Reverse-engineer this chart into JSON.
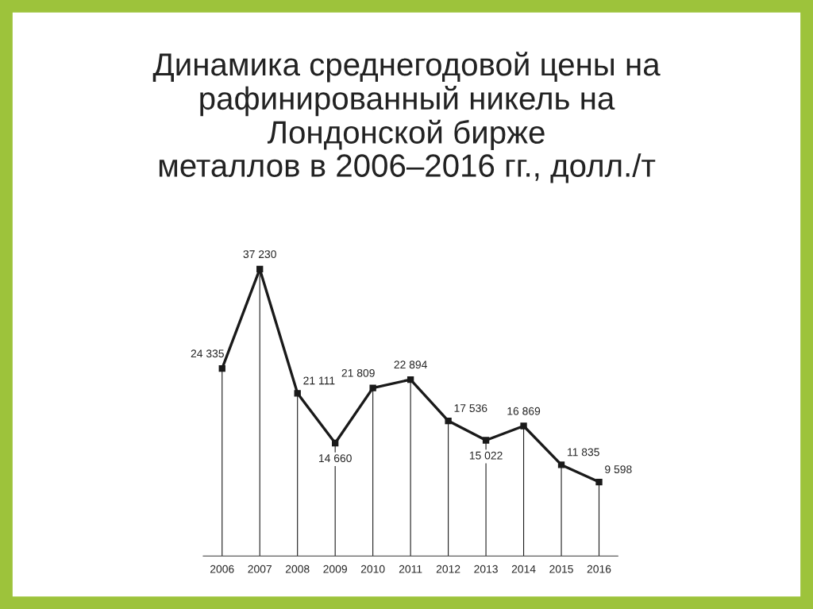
{
  "chart_data": {
    "type": "line",
    "title": "Динамика среднегодовой цены на\nрафинированный никель на\nЛондонской бирже\nметаллов в 2006–2016 гг., долл./т",
    "categories": [
      "2006",
      "2007",
      "2008",
      "2009",
      "2010",
      "2011",
      "2012",
      "2013",
      "2014",
      "2015",
      "2016"
    ],
    "series": [
      {
        "color": "#1a1a1a",
        "values": [
          24335,
          37230,
          21111,
          14660,
          21809,
          22894,
          17536,
          15022,
          16869,
          11835,
          9598
        ]
      }
    ],
    "data_labels": true,
    "marker": "square",
    "grid": "x",
    "legend": false,
    "tick_labels": "x"
  }
}
